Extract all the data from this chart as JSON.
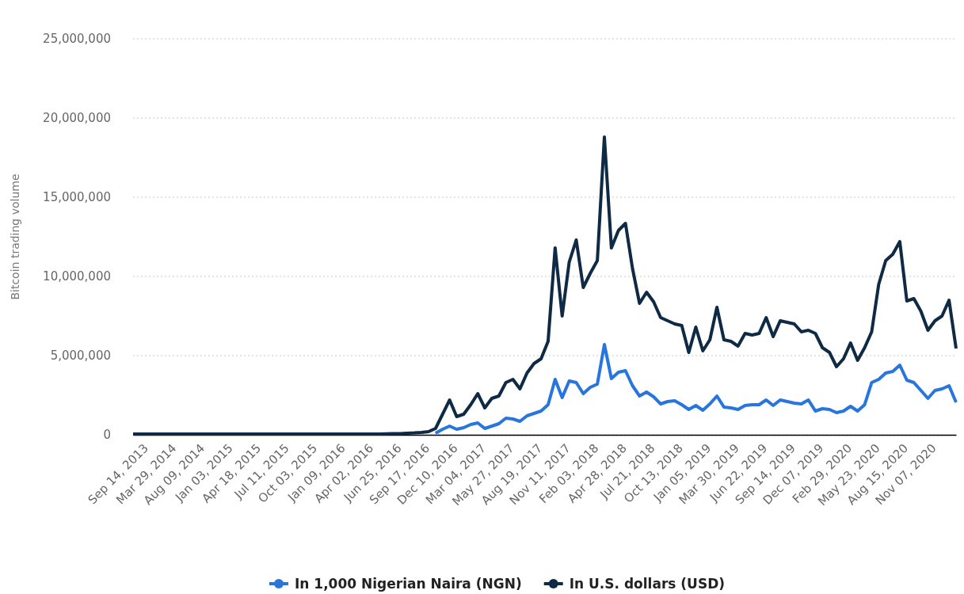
{
  "chart_data": {
    "type": "line",
    "ylabel": "Bitcoin trading volume",
    "categories": [
      null,
      null,
      "Sep 14, 2013",
      null,
      null,
      null,
      "Mar 29, 2014",
      null,
      null,
      null,
      "Aug 09, 2014",
      null,
      null,
      null,
      "Jan 03, 2015",
      null,
      null,
      null,
      "Apr 18, 2015",
      null,
      null,
      null,
      "Jul 11, 2015",
      null,
      null,
      null,
      "Oct 03, 2015",
      null,
      null,
      null,
      "Jan 09, 2016",
      null,
      null,
      null,
      "Apr 02, 2016",
      null,
      null,
      null,
      "Jun 25, 2016",
      null,
      null,
      null,
      "Sep 17, 2016",
      null,
      null,
      null,
      "Dec 10, 2016",
      null,
      null,
      null,
      "Mar 04, 2017",
      null,
      null,
      null,
      "May 27, 2017",
      null,
      null,
      null,
      "Aug 19, 2017",
      null,
      null,
      null,
      "Nov 11, 2017",
      null,
      null,
      null,
      "Feb 03, 2018",
      null,
      null,
      null,
      "Apr 28, 2018",
      null,
      null,
      null,
      "Jul 21, 2018",
      null,
      null,
      null,
      "Oct 13, 2018",
      null,
      null,
      null,
      "Jan 05, 2019",
      null,
      null,
      null,
      "Mar 30, 2019",
      null,
      null,
      null,
      "Jun 22, 2019",
      null,
      null,
      null,
      "Sep 14, 2019",
      null,
      null,
      null,
      "Dec 07, 2019",
      null,
      null,
      null,
      "Feb 29, 2020",
      null,
      null,
      null,
      "May 23, 2020",
      null,
      null,
      null,
      "Aug 15, 2020",
      null,
      null,
      null,
      "Nov 07, 2020",
      null,
      null,
      null
    ],
    "series": [
      {
        "name": "In 1,000 Nigerian Naira (NGN)",
        "color": "#2876dd",
        "values": [
          null,
          null,
          null,
          null,
          null,
          null,
          null,
          null,
          null,
          null,
          null,
          null,
          null,
          null,
          null,
          null,
          null,
          null,
          null,
          null,
          null,
          null,
          null,
          null,
          null,
          null,
          null,
          null,
          null,
          null,
          null,
          null,
          null,
          null,
          null,
          null,
          null,
          null,
          null,
          null,
          null,
          null,
          null,
          100000,
          350000,
          550000,
          350000,
          450000,
          650000,
          750000,
          400000,
          550000,
          700000,
          1050000,
          1000000,
          850000,
          1200000,
          1350000,
          1500000,
          1900000,
          3500000,
          2350000,
          3400000,
          3300000,
          2600000,
          3000000,
          3200000,
          5700000,
          3550000,
          3950000,
          4050000,
          3100000,
          2450000,
          2700000,
          2400000,
          1950000,
          2100000,
          2150000,
          1900000,
          1600000,
          1850000,
          1550000,
          1950000,
          2450000,
          1750000,
          1700000,
          1600000,
          1850000,
          1900000,
          1900000,
          2200000,
          1850000,
          2200000,
          2100000,
          2000000,
          1950000,
          2200000,
          1500000,
          1650000,
          1600000,
          1400000,
          1500000,
          1800000,
          1500000,
          1900000,
          3300000,
          3500000,
          3900000,
          4000000,
          4400000,
          3450000,
          3300000,
          2800000,
          2300000,
          2800000,
          2900000,
          3100000,
          2050000
        ]
      },
      {
        "name": "In U.S. dollars (USD)",
        "color": "#0f2a44",
        "values": [
          50000,
          50000,
          50000,
          50000,
          50000,
          50000,
          50000,
          50000,
          50000,
          50000,
          50000,
          50000,
          50000,
          50000,
          50000,
          50000,
          50000,
          50000,
          50000,
          50000,
          50000,
          50000,
          50000,
          50000,
          50000,
          50000,
          50000,
          50000,
          50000,
          50000,
          50000,
          50000,
          50000,
          50000,
          50000,
          50000,
          60000,
          70000,
          80000,
          100000,
          120000,
          150000,
          200000,
          400000,
          1300000,
          2200000,
          1150000,
          1300000,
          1900000,
          2600000,
          1700000,
          2300000,
          2450000,
          3300000,
          3500000,
          2900000,
          3900000,
          4500000,
          4800000,
          5900000,
          11800000,
          7500000,
          10900000,
          12300000,
          9300000,
          10200000,
          11000000,
          18800000,
          11800000,
          12900000,
          13350000,
          10500000,
          8300000,
          9000000,
          8400000,
          7400000,
          7200000,
          7000000,
          6900000,
          5200000,
          6800000,
          5300000,
          6000000,
          8050000,
          6000000,
          5900000,
          5600000,
          6400000,
          6300000,
          6400000,
          7400000,
          6200000,
          7200000,
          7100000,
          7000000,
          6500000,
          6600000,
          6400000,
          5500000,
          5200000,
          4300000,
          4800000,
          5800000,
          4700000,
          5500000,
          6500000,
          9500000,
          11000000,
          11400000,
          12200000,
          8450000,
          8600000,
          7800000,
          6600000,
          7200000,
          7500000,
          8500000,
          5450000
        ]
      }
    ],
    "ylim": [
      0,
      25000000
    ],
    "yticks": [
      {
        "value": 0,
        "label": "0"
      },
      {
        "value": 5000000,
        "label": "5,000,000"
      },
      {
        "value": 10000000,
        "label": "10,000,000"
      },
      {
        "value": 15000000,
        "label": "15,000,000"
      },
      {
        "value": 20000000,
        "label": "20,000,000"
      },
      {
        "value": 25000000,
        "label": "25,000,000"
      }
    ],
    "grid": "y",
    "legend": "bottom",
    "marker": "none",
    "line_style": "solid"
  }
}
